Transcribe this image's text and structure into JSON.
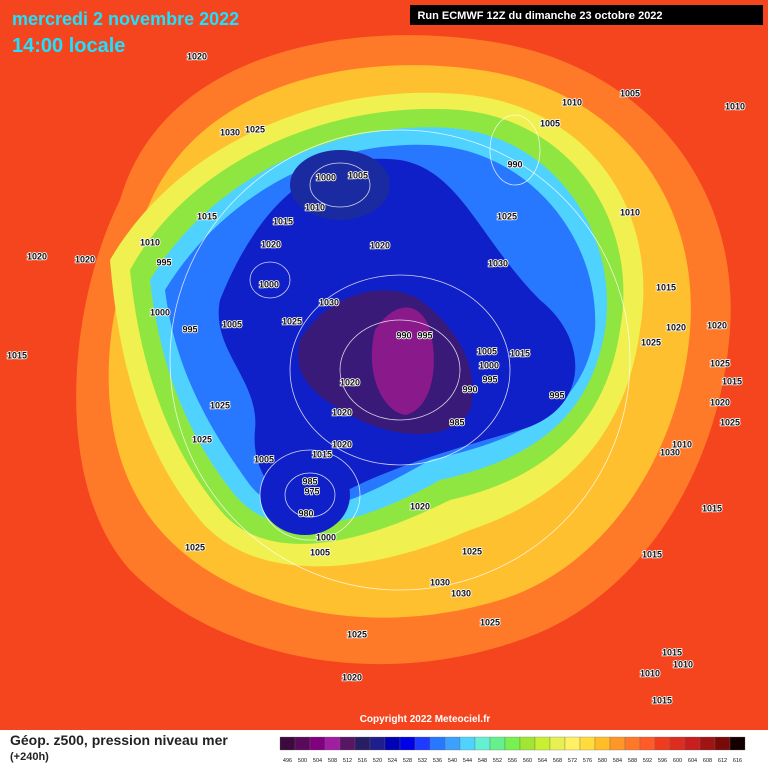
{
  "header": {
    "date": "mercredi 2 novembre 2022",
    "time": "14:00 locale",
    "run": "Run ECMWF 12Z du dimanche 23 octobre 2022"
  },
  "copyright": "Copyright 2022 Meteociel.fr",
  "legend": {
    "title": "Géop. z500, pression niveau mer",
    "lead": "(+240h)",
    "levels": [
      {
        "value": 496,
        "color": "#3c0a3c"
      },
      {
        "value": 500,
        "color": "#5a0a5a"
      },
      {
        "value": 504,
        "color": "#800080"
      },
      {
        "value": 508,
        "color": "#a01ea0"
      },
      {
        "value": 512,
        "color": "#5a1464"
      },
      {
        "value": 516,
        "color": "#281e64"
      },
      {
        "value": 520,
        "color": "#1e1e8c"
      },
      {
        "value": 524,
        "color": "#0000b4"
      },
      {
        "value": 528,
        "color": "#0000e6"
      },
      {
        "value": 532,
        "color": "#1e3cff"
      },
      {
        "value": 536,
        "color": "#2878ff"
      },
      {
        "value": 540,
        "color": "#3ca0ff"
      },
      {
        "value": 544,
        "color": "#50d2ff"
      },
      {
        "value": 548,
        "color": "#64f0d2"
      },
      {
        "value": 552,
        "color": "#64f08c"
      },
      {
        "value": 556,
        "color": "#78f050"
      },
      {
        "value": 560,
        "color": "#a0e632"
      },
      {
        "value": 564,
        "color": "#c8f032"
      },
      {
        "value": 568,
        "color": "#e6f050"
      },
      {
        "value": 572,
        "color": "#fff064"
      },
      {
        "value": 576,
        "color": "#ffdc3c"
      },
      {
        "value": 580,
        "color": "#ffbe28"
      },
      {
        "value": 584,
        "color": "#ff9628"
      },
      {
        "value": 588,
        "color": "#ff7828"
      },
      {
        "value": 592,
        "color": "#ff5a28"
      },
      {
        "value": 596,
        "color": "#f03c1e"
      },
      {
        "value": 600,
        "color": "#dc2d1e"
      },
      {
        "value": 604,
        "color": "#c81e1e"
      },
      {
        "value": 608,
        "color": "#a01414"
      },
      {
        "value": 612,
        "color": "#780a0a"
      },
      {
        "value": 616,
        "color": "#140000"
      }
    ]
  },
  "isobars": [
    "1020",
    "1030",
    "1025",
    "1010",
    "1005",
    "1010",
    "990",
    "1005",
    "1000",
    "1005",
    "1010",
    "1015",
    "1015",
    "1020",
    "1010",
    "1020",
    "1020",
    "995",
    "1000",
    "1030",
    "1025",
    "1005",
    "1000",
    "995",
    "1030",
    "1025",
    "1010",
    "1020",
    "990",
    "995",
    "1005",
    "1015",
    "1000",
    "995",
    "990",
    "985",
    "995",
    "1020",
    "1020",
    "1020",
    "1015",
    "1005",
    "985",
    "975",
    "980",
    "1000",
    "1005",
    "1025",
    "1025",
    "1015",
    "1025",
    "1020",
    "1025",
    "1030",
    "1030",
    "1025",
    "1025",
    "1020",
    "1015",
    "1015",
    "1030",
    "1010",
    "1025",
    "1020",
    "1015",
    "1025",
    "1020",
    "1020",
    "1025",
    "1015",
    "1015",
    "1010",
    "1010",
    "1015"
  ]
}
